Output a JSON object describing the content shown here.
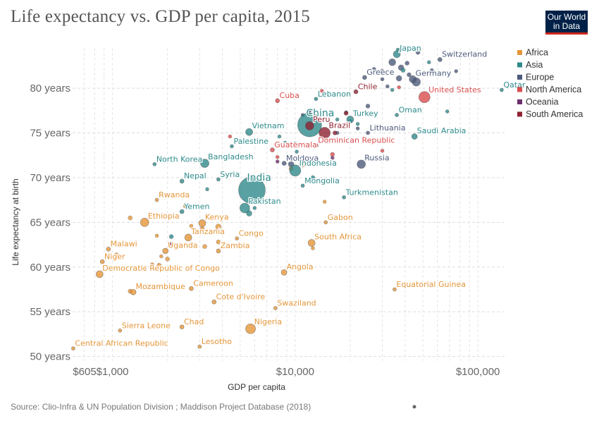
{
  "title": "Life expectancy vs. GDP per capita, 2015",
  "logo": {
    "line1": "Our World",
    "line2": "in Data",
    "bg": "#002147",
    "accent": "#ce261e"
  },
  "source": "Source: Clio-Infra & UN Population Division ; Maddison Project Database (2018)",
  "colors": {
    "Africa": "#e5963a",
    "Asia": "#2f8a8b",
    "Europe": "#4c5a7b",
    "North America": "#d94e4e",
    "Oceania": "#6c2f6e",
    "South America": "#8f2232"
  },
  "chart_data": {
    "type": "scatter",
    "title": "Life expectancy vs. GDP per capita, 2015",
    "xlabel": "GDP per capita",
    "ylabel": "Life expectancy at birth",
    "xscale": "log",
    "xlim": [
      605,
      140000
    ],
    "ylim": [
      49.5,
      84.5
    ],
    "xticks": [
      605,
      1000,
      10000,
      100000
    ],
    "xtick_labels": [
      "$605",
      "$1,000",
      "$10,000",
      "$100,000"
    ],
    "yticks": [
      50,
      55,
      60,
      65,
      70,
      75,
      80
    ],
    "ytick_labels": [
      "50 years",
      "55 years",
      "60 years",
      "65 years",
      "70 years",
      "75 years",
      "80 years"
    ],
    "grid": true,
    "legend": {
      "position": "right",
      "entries": [
        "Africa",
        "Asia",
        "Europe",
        "North America",
        "Oceania",
        "South America"
      ]
    },
    "points": [
      {
        "label": "Switzerland",
        "region": "Europe",
        "x": 62000,
        "y": 83.2,
        "r": 3
      },
      {
        "label": "Japan",
        "region": "Asia",
        "x": 36000,
        "y": 83.8,
        "r": 5
      },
      {
        "label": "Greece",
        "region": "Europe",
        "x": 24000,
        "y": 81.2,
        "r": 3
      },
      {
        "label": "Germany",
        "region": "Europe",
        "x": 44000,
        "y": 81.0,
        "r": 5
      },
      {
        "label": "Qatar",
        "region": "Asia",
        "x": 135000,
        "y": 79.8,
        "r": 2.5
      },
      {
        "label": "United States",
        "region": "North America",
        "x": 51000,
        "y": 79.0,
        "r": 8
      },
      {
        "label": "Chile",
        "region": "South America",
        "x": 21500,
        "y": 79.6,
        "r": 3
      },
      {
        "label": "Cuba",
        "region": "North America",
        "x": 8000,
        "y": 78.6,
        "r": 3
      },
      {
        "label": "Lebanon",
        "region": "Asia",
        "x": 13000,
        "y": 78.8,
        "r": 2.5
      },
      {
        "label": "China",
        "region": "Asia",
        "x": 12000,
        "y": 75.9,
        "r": 17
      },
      {
        "label": "Peru",
        "region": "South America",
        "x": 12000,
        "y": 75.8,
        "r": 6
      },
      {
        "label": "Turkey",
        "region": "Asia",
        "x": 20000,
        "y": 76.5,
        "r": 5
      },
      {
        "label": "Oman",
        "region": "Asia",
        "x": 36000,
        "y": 77.0,
        "r": 2.5
      },
      {
        "label": "Brazil",
        "region": "South America",
        "x": 14500,
        "y": 75.0,
        "r": 8
      },
      {
        "label": "Lithuania",
        "region": "Europe",
        "x": 25000,
        "y": 75.0,
        "r": 2.5
      },
      {
        "label": "Saudi Arabia",
        "region": "Asia",
        "x": 45000,
        "y": 74.6,
        "r": 4
      },
      {
        "label": "Vietnam",
        "region": "Asia",
        "x": 5600,
        "y": 75.1,
        "r": 5
      },
      {
        "label": "Palestine",
        "region": "Asia",
        "x": 4500,
        "y": 73.5,
        "r": 2.5
      },
      {
        "label": "Guatemala",
        "region": "North America",
        "x": 7500,
        "y": 73.1,
        "r": 3
      },
      {
        "label": "Dominican Republic",
        "region": "North America",
        "x": 13000,
        "y": 73.6,
        "r": 3
      },
      {
        "label": "Russia",
        "region": "Europe",
        "x": 23000,
        "y": 71.5,
        "r": 6
      },
      {
        "label": "North Korea",
        "region": "Asia",
        "x": 1700,
        "y": 71.5,
        "r": 2.5
      },
      {
        "label": "Bangladesh",
        "region": "Asia",
        "x": 3200,
        "y": 71.6,
        "r": 6
      },
      {
        "label": "Moldova",
        "region": "Europe",
        "x": 8700,
        "y": 71.6,
        "r": 3
      },
      {
        "label": "Indonesia",
        "region": "Asia",
        "x": 10000,
        "y": 70.8,
        "r": 8
      },
      {
        "label": "Nepal",
        "region": "Asia",
        "x": 2400,
        "y": 69.6,
        "r": 3
      },
      {
        "label": "Syria",
        "region": "Asia",
        "x": 3800,
        "y": 69.8,
        "r": 2.5
      },
      {
        "label": "India",
        "region": "Asia",
        "x": 5800,
        "y": 68.6,
        "r": 19
      },
      {
        "label": "Mongolia",
        "region": "Asia",
        "x": 11000,
        "y": 69.1,
        "r": 2.5
      },
      {
        "label": "Turkmenistan",
        "region": "Asia",
        "x": 18500,
        "y": 67.8,
        "r": 2.5
      },
      {
        "label": "Rwanda",
        "region": "Africa",
        "x": 1750,
        "y": 67.5,
        "r": 2.5
      },
      {
        "label": "Pakistan",
        "region": "Asia",
        "x": 5300,
        "y": 66.6,
        "r": 7
      },
      {
        "label": "Yemen",
        "region": "Asia",
        "x": 2400,
        "y": 66.2,
        "r": 3
      },
      {
        "label": "Ethiopia",
        "region": "Africa",
        "x": 1500,
        "y": 65.0,
        "r": 6
      },
      {
        "label": "Kenya",
        "region": "Africa",
        "x": 3100,
        "y": 64.9,
        "r": 5
      },
      {
        "label": "Gabon",
        "region": "Africa",
        "x": 14700,
        "y": 65.0,
        "r": 2.5
      },
      {
        "label": "Tanzania",
        "region": "Africa",
        "x": 2600,
        "y": 63.3,
        "r": 5
      },
      {
        "label": "Congo",
        "region": "Africa",
        "x": 4800,
        "y": 63.2,
        "r": 2.5
      },
      {
        "label": "South Africa",
        "region": "Africa",
        "x": 12300,
        "y": 62.7,
        "r": 5
      },
      {
        "label": "Malawi",
        "region": "Africa",
        "x": 950,
        "y": 62.0,
        "r": 3
      },
      {
        "label": "Uganda",
        "region": "Africa",
        "x": 1950,
        "y": 61.8,
        "r": 4
      },
      {
        "label": "Zambia",
        "region": "Africa",
        "x": 3800,
        "y": 61.8,
        "r": 3
      },
      {
        "label": "Niger",
        "region": "Africa",
        "x": 880,
        "y": 60.6,
        "r": 3
      },
      {
        "label": "Democratic Republic of Congo",
        "region": "Africa",
        "x": 850,
        "y": 59.2,
        "r": 5
      },
      {
        "label": "Angola",
        "region": "Africa",
        "x": 8700,
        "y": 59.4,
        "r": 4
      },
      {
        "label": "Mozambique",
        "region": "Africa",
        "x": 1300,
        "y": 57.2,
        "r": 4
      },
      {
        "label": "Cameroon",
        "region": "Africa",
        "x": 2700,
        "y": 57.6,
        "r": 3
      },
      {
        "label": "Equatorial Guinea",
        "region": "Africa",
        "x": 35000,
        "y": 57.5,
        "r": 2.5
      },
      {
        "label": "Cote d'Ivoire",
        "region": "Africa",
        "x": 3600,
        "y": 56.1,
        "r": 3
      },
      {
        "label": "Swaziland",
        "region": "Africa",
        "x": 7800,
        "y": 55.4,
        "r": 2.5
      },
      {
        "label": "Nigeria",
        "region": "Africa",
        "x": 5700,
        "y": 53.1,
        "r": 7
      },
      {
        "label": "Chad",
        "region": "Africa",
        "x": 2400,
        "y": 53.3,
        "r": 3
      },
      {
        "label": "Sierra Leone",
        "region": "Africa",
        "x": 1100,
        "y": 52.9,
        "r": 2.5
      },
      {
        "label": "Lesotho",
        "region": "Africa",
        "x": 3000,
        "y": 51.1,
        "r": 2.5
      },
      {
        "label": "Central African Republic",
        "region": "Africa",
        "x": 610,
        "y": 50.9,
        "r": 2.5
      }
    ],
    "others": [
      {
        "region": "Europe",
        "x": 34000,
        "y": 82.9,
        "r": 5
      },
      {
        "region": "Europe",
        "x": 47000,
        "y": 84.0,
        "r": 3
      },
      {
        "region": "Europe",
        "x": 41000,
        "y": 82.8,
        "r": 3
      },
      {
        "region": "Europe",
        "x": 38000,
        "y": 82.3,
        "r": 4
      },
      {
        "region": "Europe",
        "x": 30000,
        "y": 81.9,
        "r": 3
      },
      {
        "region": "Europe",
        "x": 27000,
        "y": 82.1,
        "r": 3
      },
      {
        "region": "Europe",
        "x": 46000,
        "y": 80.7,
        "r": 6
      },
      {
        "region": "Europe",
        "x": 37000,
        "y": 81.1,
        "r": 4
      },
      {
        "region": "Europe",
        "x": 42000,
        "y": 81.5,
        "r": 3
      },
      {
        "region": "Europe",
        "x": 56000,
        "y": 82.0,
        "r": 2.5
      },
      {
        "region": "Europe",
        "x": 76000,
        "y": 81.9,
        "r": 2.5
      },
      {
        "region": "Europe",
        "x": 30000,
        "y": 81.0,
        "r": 2.5
      },
      {
        "region": "Europe",
        "x": 32000,
        "y": 80.2,
        "r": 2.5
      },
      {
        "region": "Asia",
        "x": 36500,
        "y": 84.3,
        "r": 2.5
      },
      {
        "region": "Asia",
        "x": 54000,
        "y": 82.9,
        "r": 2.5
      },
      {
        "region": "Asia",
        "x": 39000,
        "y": 82.0,
        "r": 3
      },
      {
        "region": "Asia",
        "x": 34000,
        "y": 79.8,
        "r": 2.5
      },
      {
        "region": "Asia",
        "x": 68000,
        "y": 77.4,
        "r": 2.5
      },
      {
        "region": "Asia",
        "x": 22000,
        "y": 76.0,
        "r": 2.5
      },
      {
        "region": "Asia",
        "x": 17000,
        "y": 76.5,
        "r": 2.5
      },
      {
        "region": "Asia",
        "x": 8200,
        "y": 74.6,
        "r": 2.5
      },
      {
        "region": "Asia",
        "x": 8800,
        "y": 73.9,
        "r": 2.5
      },
      {
        "region": "Asia",
        "x": 10200,
        "y": 72.9,
        "r": 2.5
      },
      {
        "region": "Asia",
        "x": 12500,
        "y": 70.0,
        "r": 3
      },
      {
        "region": "Asia",
        "x": 3300,
        "y": 68.7,
        "r": 2.5
      },
      {
        "region": "Asia",
        "x": 2100,
        "y": 63.4,
        "r": 3
      },
      {
        "region": "Asia",
        "x": 5600,
        "y": 66.0,
        "r": 4
      },
      {
        "region": "Asia",
        "x": 6000,
        "y": 66.6,
        "r": 2.5
      },
      {
        "region": "Europe",
        "x": 19000,
        "y": 77.3,
        "r": 2.5
      },
      {
        "region": "Europe",
        "x": 20000,
        "y": 76.3,
        "r": 2.5
      },
      {
        "region": "Europe",
        "x": 17000,
        "y": 75.0,
        "r": 2.5
      },
      {
        "region": "Europe",
        "x": 22000,
        "y": 75.5,
        "r": 2.5
      },
      {
        "region": "Europe",
        "x": 10000,
        "y": 73.8,
        "r": 2.5
      },
      {
        "region": "Europe",
        "x": 9500,
        "y": 71.5,
        "r": 4
      },
      {
        "region": "Europe",
        "x": 11000,
        "y": 77.0,
        "r": 2.5
      },
      {
        "region": "Europe",
        "x": 25000,
        "y": 78.0,
        "r": 3
      },
      {
        "region": "Europe",
        "x": 12000,
        "y": 77.5,
        "r": 2.5
      },
      {
        "region": "North America",
        "x": 30000,
        "y": 73.0,
        "r": 2.5
      },
      {
        "region": "North America",
        "x": 16000,
        "y": 72.6,
        "r": 3
      },
      {
        "region": "North America",
        "x": 8000,
        "y": 72.3,
        "r": 2.5
      },
      {
        "region": "North America",
        "x": 4400,
        "y": 74.6,
        "r": 2.5
      },
      {
        "region": "North America",
        "x": 7000,
        "y": 74.0,
        "r": 2.5
      },
      {
        "region": "North America",
        "x": 37000,
        "y": 80.1,
        "r": 2.5
      },
      {
        "region": "North America",
        "x": 14000,
        "y": 79.7,
        "r": 2.5
      },
      {
        "region": "Oceania",
        "x": 16000,
        "y": 72.2,
        "r": 2.5
      },
      {
        "region": "Oceania",
        "x": 8000,
        "y": 71.8,
        "r": 2.5
      },
      {
        "region": "South America",
        "x": 19000,
        "y": 77.2,
        "r": 3
      },
      {
        "region": "South America",
        "x": 16500,
        "y": 75.0,
        "r": 3
      },
      {
        "region": "South America",
        "x": 2100,
        "y": 62.6,
        "r": 2.5
      },
      {
        "region": "Africa",
        "x": 11000,
        "y": 71.5,
        "r": 4
      },
      {
        "region": "Africa",
        "x": 9500,
        "y": 71.0,
        "r": 3
      },
      {
        "region": "Africa",
        "x": 12000,
        "y": 71.8,
        "r": 2.5
      },
      {
        "region": "Africa",
        "x": 1250,
        "y": 65.5,
        "r": 3
      },
      {
        "region": "Africa",
        "x": 2500,
        "y": 66.8,
        "r": 2.5
      },
      {
        "region": "Africa",
        "x": 2700,
        "y": 64.6,
        "r": 2.5
      },
      {
        "region": "Africa",
        "x": 1800,
        "y": 60.2,
        "r": 3
      },
      {
        "region": "Africa",
        "x": 3200,
        "y": 62.3,
        "r": 3
      },
      {
        "region": "Africa",
        "x": 3800,
        "y": 64.5,
        "r": 4
      },
      {
        "region": "Africa",
        "x": 3800,
        "y": 62.8,
        "r": 3
      },
      {
        "region": "Africa",
        "x": 1500,
        "y": 59.8,
        "r": 2.5
      },
      {
        "region": "Africa",
        "x": 1650,
        "y": 60.3,
        "r": 2.5
      },
      {
        "region": "Africa",
        "x": 2000,
        "y": 60.9,
        "r": 3
      },
      {
        "region": "Africa",
        "x": 1750,
        "y": 63.5,
        "r": 2.5
      },
      {
        "region": "Africa",
        "x": 1050,
        "y": 61.4,
        "r": 2.5
      },
      {
        "region": "Africa",
        "x": 1850,
        "y": 61.2,
        "r": 2.5
      },
      {
        "region": "Africa",
        "x": 1250,
        "y": 57.3,
        "r": 3
      },
      {
        "region": "Africa",
        "x": 12500,
        "y": 62.1,
        "r": 2.5
      },
      {
        "region": "Africa",
        "x": 14500,
        "y": 67.3,
        "r": 2.5
      },
      {
        "region": "Africa",
        "x": 3100,
        "y": 64.3,
        "r": 3
      }
    ]
  }
}
